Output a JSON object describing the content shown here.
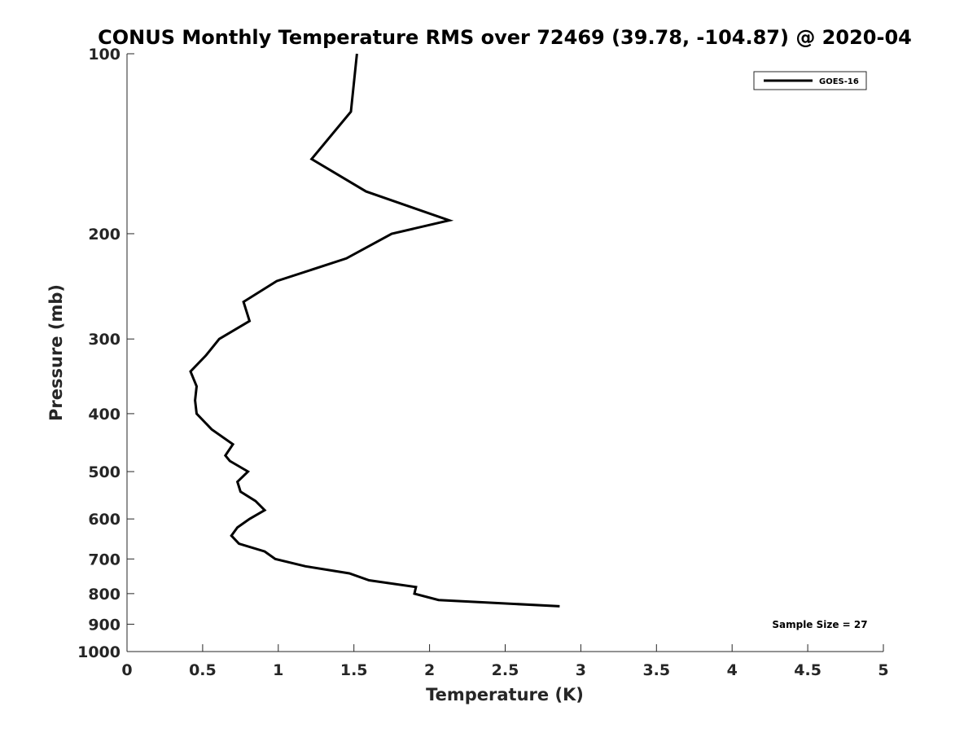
{
  "chart_data": {
    "type": "line",
    "title": "CONUS Monthly Temperature RMS over 72469 (39.78, -104.87) @ 2020-04",
    "xlabel": "Temperature (K)",
    "ylabel": "Pressure (mb)",
    "xlim": [
      0,
      5
    ],
    "ylim": [
      100,
      1000
    ],
    "y_scale": "log",
    "y_reversed": true,
    "x_ticks": [
      "0",
      "0.5",
      "1",
      "1.5",
      "2",
      "2.5",
      "3",
      "3.5",
      "4",
      "4.5",
      "5"
    ],
    "y_ticks": [
      "100",
      "200",
      "300",
      "400",
      "500",
      "600",
      "700",
      "800",
      "900",
      "1000"
    ],
    "grid": false,
    "legend": {
      "position": "top-right",
      "entries": [
        "GOES-16"
      ]
    },
    "annotation": "Sample Size = 27",
    "series": [
      {
        "name": "GOES-16",
        "color": "#000000",
        "points": [
          [
            1.52,
            100
          ],
          [
            1.48,
            125
          ],
          [
            1.22,
            150
          ],
          [
            1.58,
            170
          ],
          [
            2.13,
            190
          ],
          [
            1.75,
            200
          ],
          [
            1.45,
            220
          ],
          [
            0.99,
            240
          ],
          [
            0.77,
            260
          ],
          [
            0.81,
            280
          ],
          [
            0.61,
            300
          ],
          [
            0.52,
            320
          ],
          [
            0.42,
            340
          ],
          [
            0.46,
            360
          ],
          [
            0.45,
            380
          ],
          [
            0.46,
            400
          ],
          [
            0.56,
            425
          ],
          [
            0.7,
            450
          ],
          [
            0.65,
            470
          ],
          [
            0.68,
            480
          ],
          [
            0.8,
            500
          ],
          [
            0.73,
            520
          ],
          [
            0.75,
            540
          ],
          [
            0.85,
            560
          ],
          [
            0.91,
            580
          ],
          [
            0.81,
            600
          ],
          [
            0.73,
            620
          ],
          [
            0.69,
            640
          ],
          [
            0.74,
            660
          ],
          [
            0.91,
            680
          ],
          [
            0.98,
            700
          ],
          [
            1.18,
            720
          ],
          [
            1.47,
            740
          ],
          [
            1.6,
            760
          ],
          [
            1.91,
            780
          ],
          [
            1.9,
            800
          ],
          [
            2.06,
            820
          ],
          [
            2.86,
            840
          ]
        ]
      }
    ]
  }
}
